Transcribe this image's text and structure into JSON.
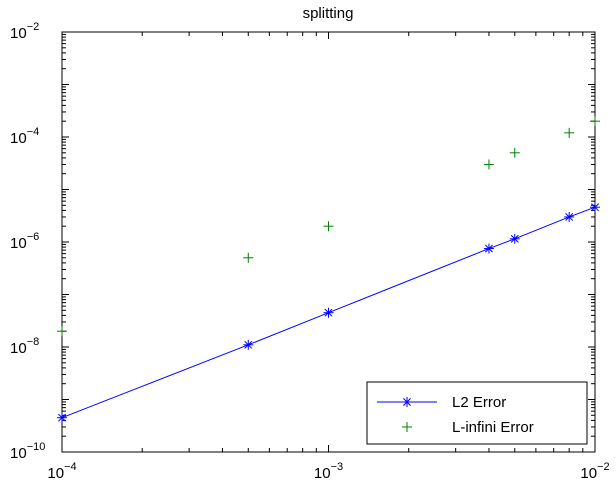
{
  "chart_data": {
    "type": "line",
    "title": "splitting",
    "xlabel": "",
    "ylabel": "",
    "xscale": "log",
    "yscale": "log",
    "xlim": [
      0.0001,
      0.01
    ],
    "ylim": [
      1e-10,
      0.01
    ],
    "x_ticks": [
      {
        "base": "10",
        "exp": "−4",
        "value": 0.0001
      },
      {
        "base": "10",
        "exp": "−3",
        "value": 0.001
      },
      {
        "base": "10",
        "exp": "−2",
        "value": 0.01
      }
    ],
    "y_ticks": [
      {
        "base": "10",
        "exp": "−10",
        "value": 1e-10
      },
      {
        "base": "10",
        "exp": "−8",
        "value": 1e-08
      },
      {
        "base": "10",
        "exp": "−6",
        "value": 1e-06
      },
      {
        "base": "10",
        "exp": "−4",
        "value": 0.0001
      },
      {
        "base": "10",
        "exp": "−2",
        "value": 0.01
      }
    ],
    "grid": false,
    "legend_position": "bottom-right",
    "series": [
      {
        "name": "L2 Error",
        "color": "#0000ff",
        "marker": "asterisk",
        "line": true,
        "points": [
          {
            "x": 0.0001,
            "y": 4.5e-10
          },
          {
            "x": 0.0005,
            "y": 1.1e-08
          },
          {
            "x": 0.001,
            "y": 4.5e-08
          },
          {
            "x": 0.004,
            "y": 7.5e-07
          },
          {
            "x": 0.005,
            "y": 1.15e-06
          },
          {
            "x": 0.008,
            "y": 3e-06
          },
          {
            "x": 0.01,
            "y": 4.6e-06
          }
        ]
      },
      {
        "name": "L-infini Error",
        "color": "#008000",
        "marker": "plus",
        "line": false,
        "points": [
          {
            "x": 0.0001,
            "y": 2e-08
          },
          {
            "x": 0.0005,
            "y": 5e-07
          },
          {
            "x": 0.001,
            "y": 2e-06
          },
          {
            "x": 0.004,
            "y": 3e-05
          },
          {
            "x": 0.005,
            "y": 5e-05
          },
          {
            "x": 0.008,
            "y": 0.00012
          },
          {
            "x": 0.01,
            "y": 0.0002
          }
        ]
      }
    ]
  }
}
